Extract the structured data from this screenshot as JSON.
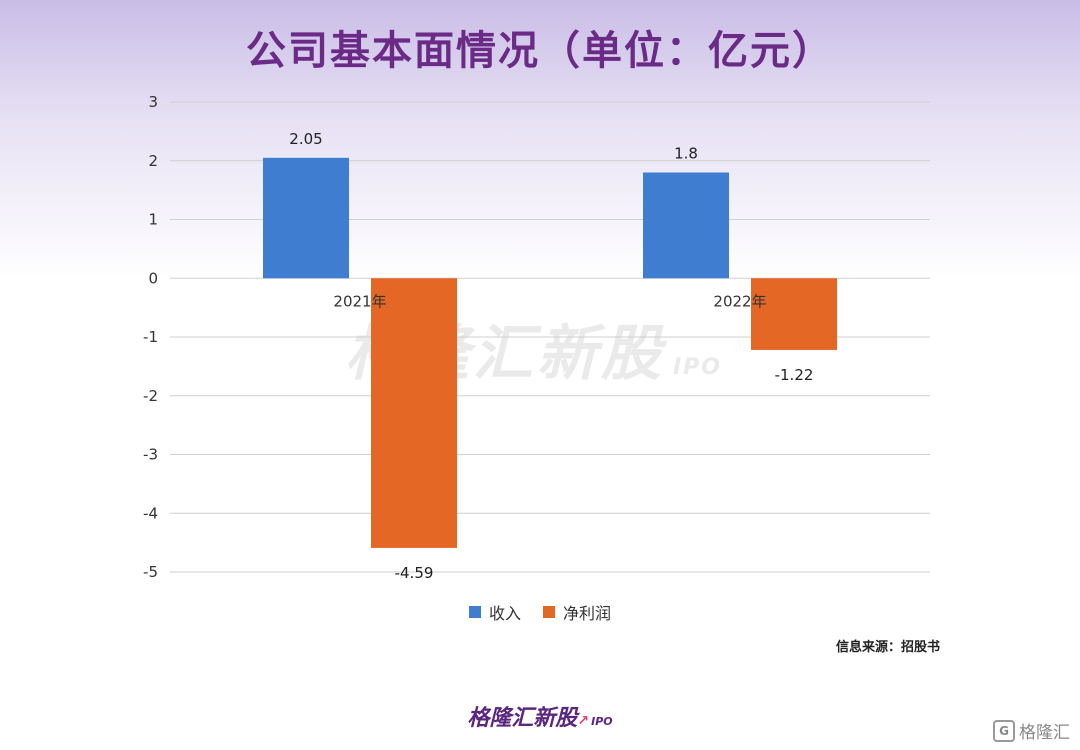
{
  "header": {
    "title": "公司基本面情况（单位：亿元）"
  },
  "chart_data": {
    "type": "bar",
    "categories": [
      "2021年",
      "2022年"
    ],
    "series": [
      {
        "name": "收入",
        "values": [
          2.05,
          1.8
        ],
        "color": "#3f7dd1"
      },
      {
        "name": "净利润",
        "values": [
          -4.59,
          -1.22
        ],
        "color": "#e46726"
      }
    ],
    "data_labels": [
      [
        "2.05",
        "1.8"
      ],
      [
        "-4.59",
        "-1.22"
      ]
    ],
    "ylim": [
      -5,
      3
    ],
    "yticks": [
      "3",
      "2",
      "1",
      "0",
      "-1",
      "-2",
      "-3",
      "-4",
      "-5"
    ],
    "grid": true,
    "legend": "bottom"
  },
  "footer": {
    "source": "信息来源：招股书",
    "brand": "格隆汇新股",
    "brand_sub": "IPO",
    "watermark": "格隆汇新股",
    "watermark_sub": "IPO",
    "corner": "格隆汇",
    "corner_icon": "G"
  }
}
